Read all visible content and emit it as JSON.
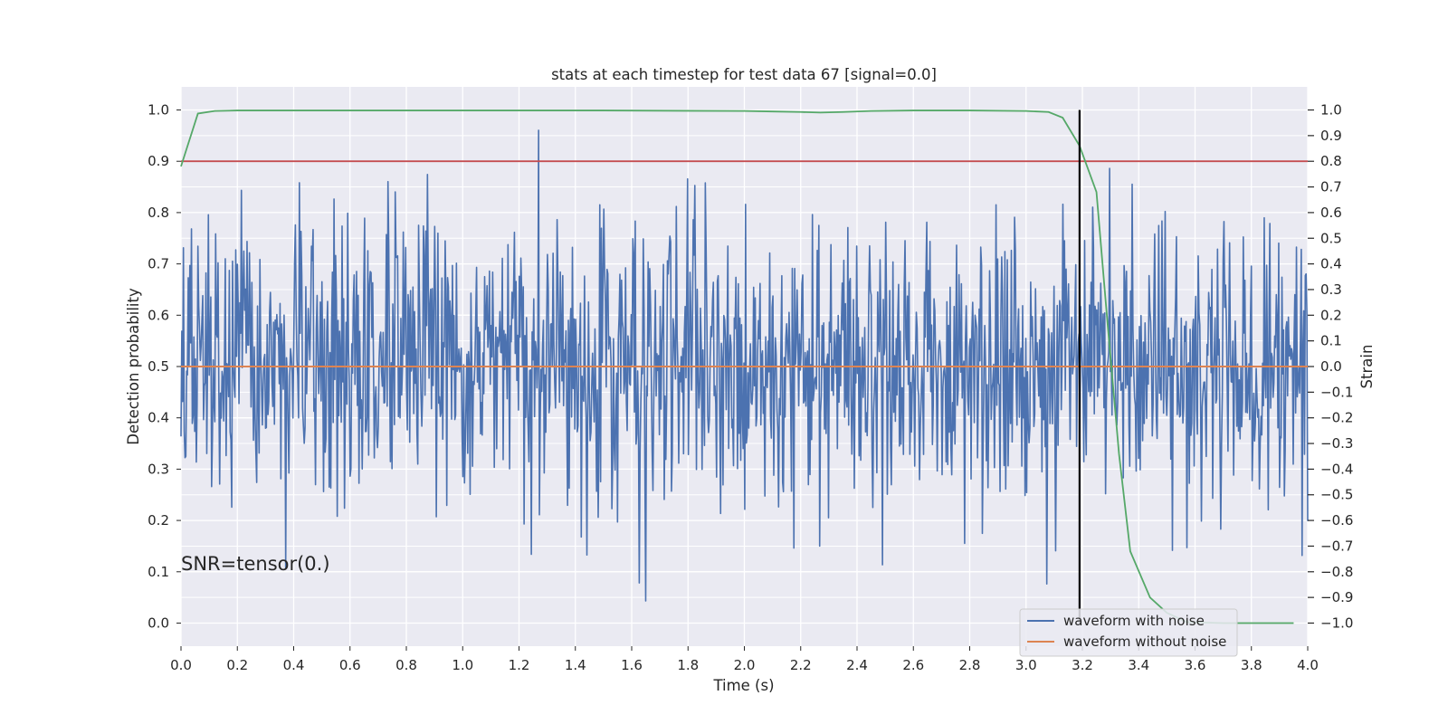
{
  "chart_data": {
    "type": "line",
    "title": "stats at each timestep for test data 67 [signal=0.0]",
    "xlabel": "Time (s)",
    "ylabel": "Detection probability",
    "ylabel_right": "Strain",
    "annotation": "SNR=tensor(0.)",
    "xlim": [
      0.0,
      4.0
    ],
    "ylim": [
      -0.045,
      1.045
    ],
    "ylim_right": [
      -1.09,
      1.09
    ],
    "x_ticks": [
      0.0,
      0.2,
      0.4,
      0.6,
      0.8,
      1.0,
      1.2,
      1.4,
      1.6,
      1.8,
      2.0,
      2.2,
      2.4,
      2.6,
      2.8,
      3.0,
      3.2,
      3.4,
      3.6,
      3.8,
      4.0
    ],
    "x_tick_labels": [
      "0.0",
      "0.2",
      "0.4",
      "0.6",
      "0.8",
      "1.0",
      "1.2",
      "1.4",
      "1.6",
      "1.8",
      "2.0",
      "2.2",
      "2.4",
      "2.6",
      "2.8",
      "3.0",
      "3.2",
      "3.4",
      "3.6",
      "3.8",
      "4.0"
    ],
    "y_ticks": [
      0.0,
      0.1,
      0.2,
      0.3,
      0.4,
      0.5,
      0.6,
      0.7,
      0.8,
      0.9,
      1.0
    ],
    "y_tick_labels": [
      "0.0",
      "0.1",
      "0.2",
      "0.3",
      "0.4",
      "0.5",
      "0.6",
      "0.7",
      "0.8",
      "0.9",
      "1.0"
    ],
    "y_right_ticks": [
      -1.0,
      -0.9,
      -0.8,
      -0.7,
      -0.6,
      -0.5,
      -0.4,
      -0.3,
      -0.2,
      -0.1,
      0.0,
      0.1,
      0.2,
      0.3,
      0.4,
      0.5,
      0.6,
      0.7,
      0.8,
      0.9,
      1.0
    ],
    "y_right_tick_labels": [
      "−1.0",
      "−0.9",
      "−0.8",
      "−0.7",
      "−0.6",
      "−0.5",
      "−0.4",
      "−0.3",
      "−0.2",
      "−0.1",
      "0.0",
      "0.1",
      "0.2",
      "0.3",
      "0.4",
      "0.5",
      "0.6",
      "0.7",
      "0.8",
      "0.9",
      "1.0"
    ],
    "grid": true,
    "legend_position": "bottom-right",
    "noise_waveform": {
      "name": "waveform with noise",
      "color": "#4c72b0",
      "axis": "right",
      "samples": 1400,
      "seed": 67,
      "mean": 0.0,
      "std": 0.27,
      "min": -1.0,
      "max": 1.0
    },
    "clean_waveform": {
      "name": "waveform without noise",
      "color": "#dd8452",
      "axis": "right",
      "value": 0.0
    },
    "detection_probability": {
      "color": "#55a868",
      "axis": "left",
      "x": [
        0.0,
        0.06,
        0.12,
        0.2,
        0.5,
        1.0,
        1.5,
        2.0,
        2.1,
        2.2,
        2.27,
        2.35,
        2.45,
        2.6,
        2.8,
        3.0,
        3.08,
        3.13,
        3.19,
        3.25,
        3.29,
        3.33,
        3.37,
        3.44,
        3.5,
        3.57,
        3.7,
        3.8,
        3.95
      ],
      "y": [
        0.89,
        0.993,
        0.998,
        0.999,
        0.999,
        0.999,
        0.999,
        0.998,
        0.997,
        0.996,
        0.995,
        0.996,
        0.998,
        0.999,
        0.999,
        0.998,
        0.996,
        0.985,
        0.93,
        0.84,
        0.58,
        0.33,
        0.14,
        0.05,
        0.02,
        0.002,
        0.0,
        0.0,
        0.0
      ]
    },
    "threshold": {
      "value": 0.9,
      "color": "#c44e52",
      "axis": "left"
    },
    "vertical_marker": {
      "x": 3.19,
      "y_from": 0.0,
      "y_to": 1.0,
      "color": "#000000"
    },
    "legend": [
      {
        "label": "waveform with noise",
        "color": "#4c72b0"
      },
      {
        "label": "waveform without noise",
        "color": "#dd8452"
      }
    ]
  }
}
